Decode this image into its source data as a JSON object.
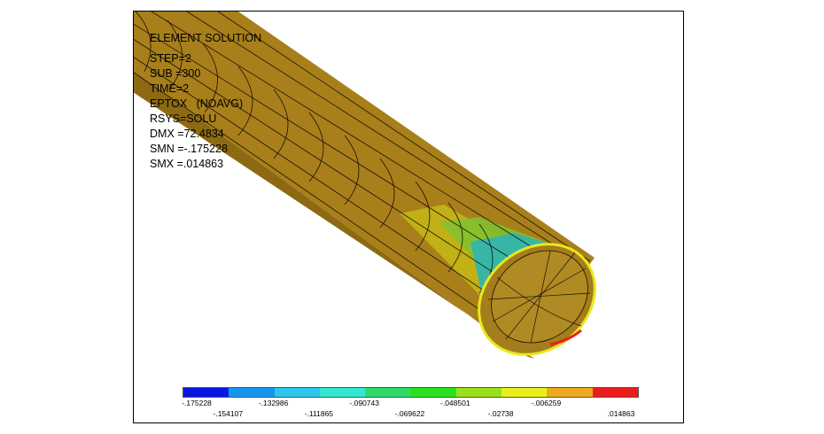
{
  "solution": {
    "title": "ELEMENT SOLUTION",
    "lines": [
      "STEP=2",
      "SUB =300",
      "TIME=2",
      "EPTOX   (NOAVG)",
      "RSYS=SOLU",
      "DMX =72.4834",
      "SMN =-.175228",
      "SMX =.014863"
    ]
  },
  "legend": {
    "colors": [
      "#0a16e6",
      "#1496ee",
      "#2cc7ee",
      "#33e8d0",
      "#2fd96a",
      "#29e21c",
      "#9be11a",
      "#e8f01c",
      "#f0a81c",
      "#ec1c1c"
    ],
    "labels_top": [
      "-.175228",
      "-.132986",
      "-.090743",
      "-.048501",
      "-.006259"
    ],
    "labels_bottom": [
      "-.154107",
      "-.111865",
      "-.069622",
      "-.02738",
      ".014863"
    ]
  },
  "colors": {
    "tube": "#a87f1a",
    "tube_dark": "#6f4f0c",
    "mesh": "#1a1208"
  }
}
